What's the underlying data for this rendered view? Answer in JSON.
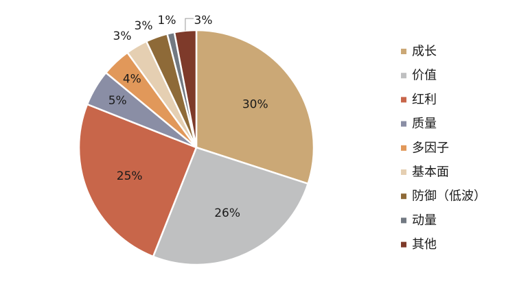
{
  "chart_data": {
    "type": "pie",
    "title": "",
    "legend_position": "right",
    "slices": [
      {
        "label": "成长",
        "value": 30,
        "display": "30%",
        "color": "#CBA876"
      },
      {
        "label": "价值",
        "value": 26,
        "display": "26%",
        "color": "#BFC0C1"
      },
      {
        "label": "红利",
        "value": 25,
        "display": "25%",
        "color": "#C8664A"
      },
      {
        "label": "质量",
        "value": 5,
        "display": "5%",
        "color": "#8A8EA5"
      },
      {
        "label": "多因子",
        "value": 4,
        "display": "4%",
        "color": "#E1985A"
      },
      {
        "label": "基本面",
        "value": 3,
        "display": "3%",
        "color": "#E5CFB2"
      },
      {
        "label": "防御（低波）",
        "value": 3,
        "display": "3%",
        "color": "#8E6A38"
      },
      {
        "label": "动量",
        "value": 1,
        "display": "1%",
        "color": "#727982"
      },
      {
        "label": "其他",
        "value": 3,
        "display": "3%",
        "color": "#7E3A2A"
      }
    ]
  }
}
